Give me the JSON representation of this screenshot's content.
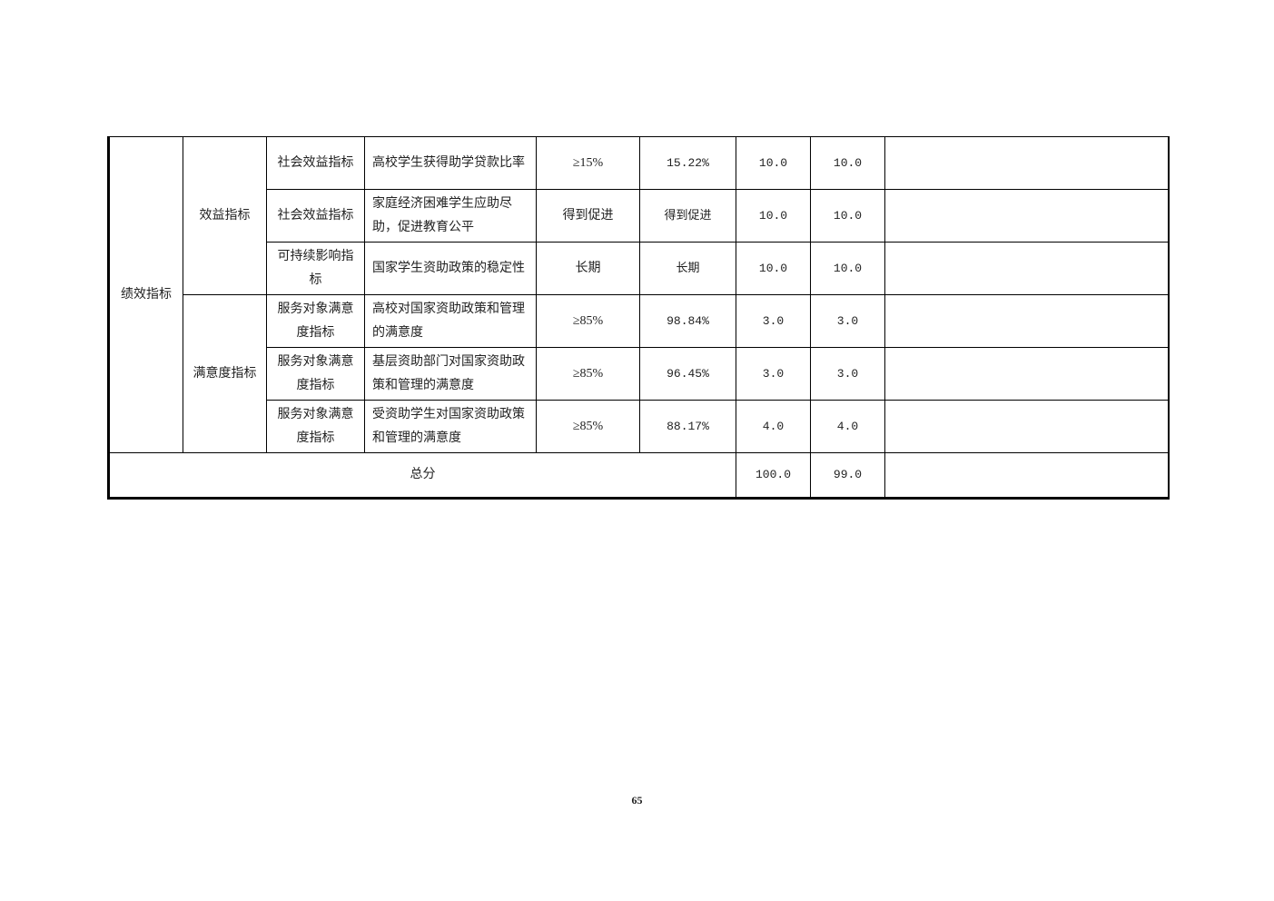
{
  "table": {
    "level1": "绩效指标",
    "groups": [
      {
        "label": "效益指标"
      },
      {
        "label": "满意度指标"
      }
    ],
    "rows": [
      {
        "indicator": "社会效益指标",
        "item": "高校学生获得助学贷款比率",
        "target": "≥15%",
        "actual": "15.22%",
        "weight": "10.0",
        "score": "10.0",
        "note": ""
      },
      {
        "indicator": "社会效益指标",
        "item": "家庭经济困难学生应助尽助，促进教育公平",
        "target": "得到促进",
        "actual": "得到促进",
        "weight": "10.0",
        "score": "10.0",
        "note": ""
      },
      {
        "indicator": "可持续影响指标",
        "item": "国家学生资助政策的稳定性",
        "target": "长期",
        "actual": "长期",
        "weight": "10.0",
        "score": "10.0",
        "note": ""
      },
      {
        "indicator": "服务对象满意度指标",
        "item": "高校对国家资助政策和管理的满意度",
        "target": "≥85%",
        "actual": "98.84%",
        "weight": "3.0",
        "score": "3.0",
        "note": ""
      },
      {
        "indicator": "服务对象满意度指标",
        "item": "基层资助部门对国家资助政策和管理的满意度",
        "target": "≥85%",
        "actual": "96.45%",
        "weight": "3.0",
        "score": "3.0",
        "note": ""
      },
      {
        "indicator": "服务对象满意度指标",
        "item": "受资助学生对国家资助政策和管理的满意度",
        "target": "≥85%",
        "actual": "88.17%",
        "weight": "4.0",
        "score": "4.0",
        "note": ""
      }
    ],
    "total": {
      "label": "总分",
      "weight": "100.0",
      "score": "99.0",
      "note": ""
    }
  },
  "page_number": "65"
}
